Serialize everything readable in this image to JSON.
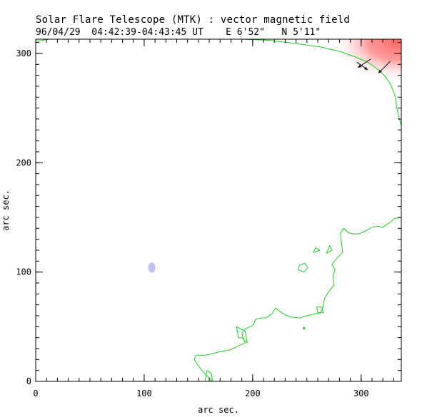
{
  "header": {
    "title": "Solar Flare Telescope (MTK) : vector magnetic field",
    "date": "96/04/29",
    "time_range": "04:42:39-04:43:45 UT",
    "position_e": "E 6'52\"",
    "position_n": "N 5'11\""
  },
  "chart_data": {
    "type": "contour",
    "title": "Solar Flare Telescope (MTK) : vector magnetic field",
    "xlabel": "arc sec.",
    "ylabel": "arc sec.",
    "xlim": [
      0,
      337
    ],
    "ylim": [
      0,
      313
    ],
    "xticks": [
      0,
      100,
      200,
      300
    ],
    "yticks": [
      0,
      100,
      200,
      300
    ],
    "x_minor_step": 10,
    "y_minor_step": 10,
    "colors": {
      "contour": "#22cc22",
      "positive": "#ff8080",
      "negative": "#b4b4f0",
      "vector": "#000000"
    },
    "limb_contour": [
      [
        0,
        311
      ],
      [
        18,
        314
      ],
      [
        160,
        316
      ],
      [
        190,
        313
      ],
      [
        215,
        312
      ],
      [
        240,
        309
      ],
      [
        262,
        306
      ],
      [
        280,
        302
      ],
      [
        294,
        297
      ],
      [
        306,
        292
      ],
      [
        316,
        285
      ],
      [
        322,
        279
      ],
      [
        327,
        272
      ],
      [
        331,
        262
      ],
      [
        333,
        250
      ],
      [
        335,
        241
      ],
      [
        337,
        234
      ]
    ],
    "contours": [
      [
        [
          163,
          0
        ],
        [
          155,
          8
        ],
        [
          150,
          14
        ],
        [
          146,
          20
        ],
        [
          148,
          24
        ],
        [
          157,
          24
        ],
        [
          169,
          27
        ],
        [
          180,
          29
        ],
        [
          188,
          33
        ],
        [
          193,
          35
        ],
        [
          190,
          44
        ],
        [
          193,
          48
        ],
        [
          200,
          51
        ],
        [
          203,
          57
        ],
        [
          208,
          58
        ],
        [
          212,
          58
        ],
        [
          218,
          62
        ],
        [
          221,
          67
        ],
        [
          228,
          62
        ],
        [
          234,
          59
        ],
        [
          243,
          58
        ],
        [
          250,
          60
        ],
        [
          258,
          62
        ],
        [
          262,
          62
        ],
        [
          265,
          68
        ],
        [
          266,
          75
        ],
        [
          270,
          82
        ],
        [
          275,
          88
        ],
        [
          274,
          97
        ],
        [
          276,
          102
        ],
        [
          273,
          107
        ],
        [
          278,
          113
        ],
        [
          283,
          118
        ],
        [
          282,
          125
        ],
        [
          281,
          136
        ],
        [
          284,
          140
        ],
        [
          288,
          136
        ],
        [
          292,
          135
        ],
        [
          298,
          135
        ],
        [
          305,
          138
        ],
        [
          310,
          141
        ],
        [
          316,
          142
        ],
        [
          320,
          141
        ],
        [
          326,
          145
        ],
        [
          331,
          149
        ],
        [
          337,
          150
        ]
      ],
      [
        [
          156,
          0
        ],
        [
          158,
          10
        ],
        [
          162,
          7
        ],
        [
          163,
          0
        ]
      ],
      [
        [
          195,
          35
        ],
        [
          190,
          40
        ],
        [
          187,
          40
        ],
        [
          185,
          50
        ],
        [
          193,
          46
        ],
        [
          195,
          35
        ]
      ],
      [
        [
          247,
          100
        ],
        [
          242,
          102
        ],
        [
          243,
          106
        ],
        [
          248,
          108
        ],
        [
          251,
          104
        ],
        [
          247,
          100
        ]
      ],
      [
        [
          264,
          68
        ],
        [
          259,
          68
        ],
        [
          260,
          63
        ],
        [
          265,
          63
        ],
        [
          264,
          68
        ]
      ],
      [
        [
          268,
          117
        ],
        [
          273,
          120
        ],
        [
          271,
          124
        ],
        [
          268,
          117
        ]
      ],
      [
        [
          262,
          120
        ],
        [
          258,
          122
        ],
        [
          256,
          118
        ],
        [
          262,
          120
        ]
      ]
    ],
    "positive_blob_x": [
      275,
      337
    ],
    "positive_blob_y": [
      275,
      313
    ],
    "negative_blob": {
      "x": 107,
      "y": 104
    },
    "vectors": [
      {
        "x": 296,
        "y": 292,
        "dx": 10,
        "dy": -7
      },
      {
        "x": 309,
        "y": 295,
        "dx": -12,
        "dy": -8
      },
      {
        "x": 327,
        "y": 293,
        "dx": -11,
        "dy": -11
      }
    ]
  }
}
